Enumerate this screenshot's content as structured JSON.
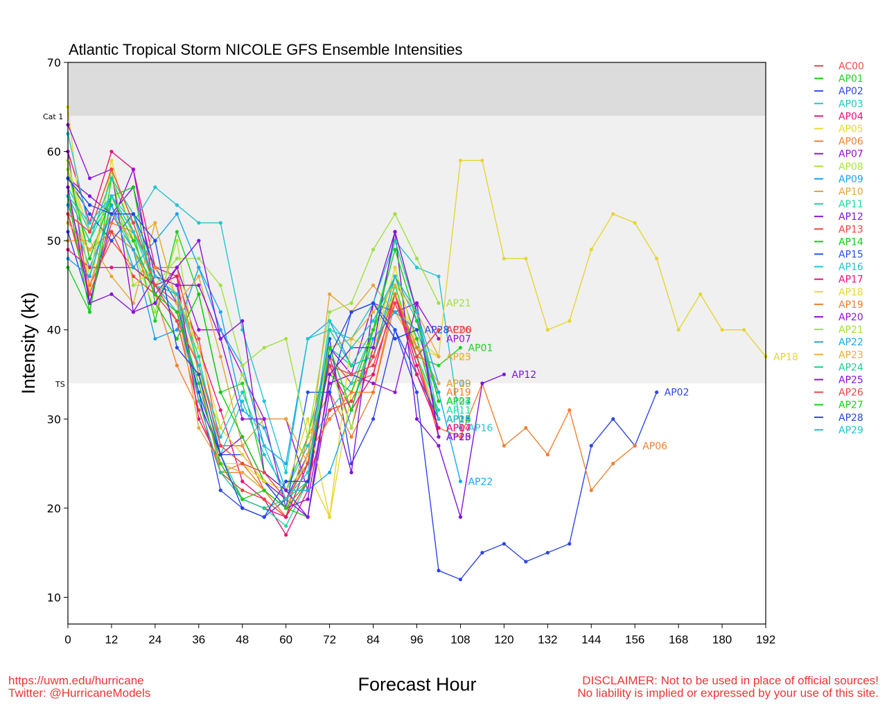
{
  "chart_data": {
    "type": "line",
    "title": "Atlantic Tropical Storm NICOLE GFS Ensemble Intensities",
    "xlabel": "Forecast Hour",
    "ylabel": "Intensity (kt)",
    "xlim": [
      0,
      192
    ],
    "ylim": [
      7,
      70
    ],
    "xticks": [
      0,
      12,
      24,
      36,
      48,
      60,
      72,
      84,
      96,
      108,
      120,
      132,
      144,
      156,
      168,
      180,
      192
    ],
    "yticks": [
      10,
      20,
      30,
      40,
      50,
      60,
      70
    ],
    "grid": false,
    "legend_position": "right-outside",
    "bands": [
      {
        "label": "Cat 1",
        "from": 64,
        "to": 70,
        "color": "#dcdcdc"
      },
      {
        "label": "TS",
        "from": 34,
        "to": 64,
        "color": "#f0f0f0"
      }
    ],
    "x": [
      0,
      6,
      12,
      18,
      24,
      30,
      36,
      42,
      48,
      54,
      60,
      66,
      72,
      78,
      84,
      90,
      96,
      102,
      108,
      114,
      120,
      126,
      132,
      138,
      144,
      150,
      156,
      162,
      168,
      174,
      180,
      186,
      192
    ],
    "series": [
      {
        "name": "AC00",
        "color": "#f24a4a",
        "values": [
          53,
          45,
          50,
          47,
          45,
          43,
          39,
          27,
          27,
          22,
          19,
          23,
          37,
          34,
          35,
          44,
          37,
          40
        ]
      },
      {
        "name": "AP01",
        "color": "#1fd11f",
        "values": [
          47,
          42,
          57,
          51,
          41,
          51,
          44,
          33,
          34,
          24,
          22,
          28,
          38,
          36,
          37,
          45,
          37,
          36,
          38
        ]
      },
      {
        "name": "AP02",
        "color": "#2f45e8",
        "values": [
          51,
          43,
          53,
          53,
          45,
          42,
          33,
          22,
          20,
          19,
          21,
          26,
          39,
          25,
          30,
          40,
          33,
          13,
          12,
          15,
          16,
          14,
          15,
          16,
          27,
          30,
          27,
          33
        ]
      },
      {
        "name": "AP03",
        "color": "#1fc7c7",
        "values": [
          56,
          51,
          54,
          49,
          45,
          42,
          32,
          26,
          32,
          26,
          22,
          27,
          31,
          34,
          40,
          46,
          41,
          32
        ]
      },
      {
        "name": "AP04",
        "color": "#ee1177",
        "values": [
          60,
          52,
          60,
          58,
          47,
          46,
          38,
          31,
          23,
          21,
          17,
          22,
          37,
          29,
          38,
          44,
          36,
          29
        ]
      },
      {
        "name": "AP05",
        "color": "#e8d92a",
        "values": [
          65,
          44,
          59,
          50,
          44,
          42,
          36,
          25,
          25,
          23,
          21,
          24,
          19,
          33,
          38,
          44,
          39,
          37
        ]
      },
      {
        "name": "AP06",
        "color": "#f08030",
        "values": [
          52,
          49,
          51,
          49,
          44,
          36,
          31,
          24,
          24,
          22,
          19,
          28,
          33,
          28,
          33,
          43,
          37,
          29,
          28,
          34,
          27,
          29,
          26,
          31,
          22,
          25,
          27
        ]
      },
      {
        "name": "AP07",
        "color": "#9b0fd8",
        "values": [
          60,
          43,
          52,
          58,
          44,
          47,
          40,
          40,
          35,
          30,
          30,
          22,
          38,
          35,
          43,
          42,
          43,
          39
        ]
      },
      {
        "name": "AP08",
        "color": "#a6e63a",
        "values": [
          59,
          48,
          55,
          49,
          42,
          50,
          35,
          29,
          35,
          29,
          22,
          25,
          36,
          29,
          40,
          44,
          37,
          30
        ]
      },
      {
        "name": "AP09",
        "color": "#1aa3f2",
        "values": [
          54,
          47,
          53,
          49,
          39,
          40,
          47,
          40,
          36,
          27,
          25,
          39,
          41,
          36,
          37,
          46,
          42,
          34
        ]
      },
      {
        "name": "AP10",
        "color": "#e8a532",
        "values": [
          50,
          50,
          46,
          43,
          52,
          43,
          46,
          37,
          27,
          30,
          30,
          25,
          44,
          42,
          45,
          42,
          38,
          34
        ]
      },
      {
        "name": "AP11",
        "color": "#1ad9a0",
        "values": [
          55,
          50,
          55,
          51,
          45,
          44,
          37,
          26,
          21,
          20,
          18,
          23,
          38,
          36,
          37,
          44,
          37,
          31
        ]
      },
      {
        "name": "AP12",
        "color": "#7f12e0",
        "values": [
          57,
          55,
          53,
          56,
          46,
          45,
          32,
          26,
          28,
          23,
          21,
          19,
          33,
          24,
          43,
          51,
          30,
          27,
          19,
          34,
          35
        ]
      },
      {
        "name": "AP13",
        "color": "#f2403f",
        "values": [
          53,
          44,
          51,
          46,
          44,
          41,
          31,
          24,
          22,
          21,
          19,
          23,
          31,
          32,
          37,
          44,
          37,
          28
        ]
      },
      {
        "name": "AP14",
        "color": "#12cc12",
        "values": [
          58,
          48,
          55,
          56,
          43,
          39,
          44,
          33,
          28,
          23,
          20,
          19,
          35,
          33,
          40,
          46,
          39,
          30
        ]
      },
      {
        "name": "AP15",
        "color": "#2050ee",
        "values": [
          57,
          53,
          50,
          53,
          47,
          43,
          33,
          26,
          26,
          23,
          20,
          33,
          33,
          42,
          43,
          40,
          35,
          30
        ]
      },
      {
        "name": "AP16",
        "color": "#22c4d0",
        "values": [
          62,
          51,
          55,
          52,
          56,
          54,
          52,
          52,
          40,
          32,
          24,
          39,
          40,
          39,
          43,
          50,
          47,
          46,
          29
        ]
      },
      {
        "name": "AP17",
        "color": "#ee0f7a",
        "values": [
          49,
          47,
          47,
          47,
          45,
          46,
          30,
          25,
          21,
          20,
          19,
          25,
          36,
          31,
          35,
          44,
          35,
          29
        ]
      },
      {
        "name": "AP18",
        "color": "#e6d530",
        "values": [
          58,
          51,
          58,
          45,
          47,
          44,
          38,
          29,
          26,
          23,
          22,
          30,
          19,
          39,
          38,
          47,
          38,
          37,
          59,
          59,
          48,
          48,
          40,
          41,
          49,
          53,
          52,
          48,
          40,
          44,
          40,
          40,
          37
        ]
      },
      {
        "name": "AP19",
        "color": "#ef7d2a",
        "values": [
          55,
          45,
          52,
          51,
          47,
          47,
          35,
          24,
          25,
          22,
          20,
          26,
          30,
          33,
          33,
          44,
          38,
          33
        ]
      },
      {
        "name": "AP20",
        "color": "#9014d6",
        "values": [
          63,
          57,
          58,
          42,
          46,
          45,
          45,
          39,
          30,
          30,
          20,
          21,
          34,
          35,
          34,
          33,
          43,
          28
        ]
      },
      {
        "name": "AP21",
        "color": "#9fe040",
        "values": [
          58,
          46,
          58,
          45,
          45,
          48,
          48,
          45,
          36,
          38,
          39,
          28,
          42,
          43,
          49,
          53,
          48,
          43
        ]
      },
      {
        "name": "AP22",
        "color": "#16a8ef",
        "values": [
          48,
          46,
          54,
          47,
          50,
          53,
          47,
          42,
          31,
          29,
          22,
          22,
          24,
          31,
          39,
          42,
          40,
          33,
          23
        ]
      },
      {
        "name": "AP23",
        "color": "#e9ab3c",
        "values": [
          52,
          49,
          53,
          50,
          52,
          43,
          29,
          25,
          24,
          22,
          20,
          26,
          38,
          39,
          42,
          45,
          42,
          37
        ]
      },
      {
        "name": "AP24",
        "color": "#1dcb93",
        "values": [
          55,
          50,
          57,
          53,
          45,
          44,
          32,
          24,
          21,
          20,
          21,
          23,
          40,
          36,
          40,
          50,
          42,
          32
        ]
      },
      {
        "name": "AP25",
        "color": "#8712db",
        "values": [
          56,
          43,
          44,
          42,
          43,
          47,
          50,
          39,
          41,
          24,
          22,
          19,
          35,
          38,
          38,
          51,
          42,
          28
        ]
      },
      {
        "name": "AP26",
        "color": "#f04444",
        "values": [
          53,
          51,
          58,
          52,
          45,
          41,
          36,
          27,
          25,
          24,
          21,
          25,
          36,
          35,
          36,
          43,
          37,
          40
        ]
      },
      {
        "name": "AP27",
        "color": "#1ace1a",
        "values": [
          55,
          42,
          55,
          50,
          44,
          42,
          34,
          25,
          21,
          22,
          20,
          23,
          38,
          31,
          40,
          49,
          41,
          32
        ]
      },
      {
        "name": "AP28",
        "color": "#2446e6",
        "values": [
          57,
          54,
          53,
          53,
          50,
          38,
          35,
          26,
          20,
          19,
          23,
          23,
          37,
          42,
          43,
          39,
          40
        ]
      },
      {
        "name": "AP29",
        "color": "#1ec6cf",
        "values": [
          55,
          52,
          55,
          51,
          46,
          44,
          36,
          28,
          33,
          27,
          21,
          24,
          41,
          38,
          41,
          46,
          42,
          30
        ]
      }
    ]
  },
  "footer": {
    "left_line1": "https://uwm.edu/hurricane",
    "left_line2": "Twitter: @HurricaneModels",
    "right_line1": "DISCLAIMER: Not to be used in place of official sources!",
    "right_line2": "No liability is implied or expressed by your use of this site."
  }
}
